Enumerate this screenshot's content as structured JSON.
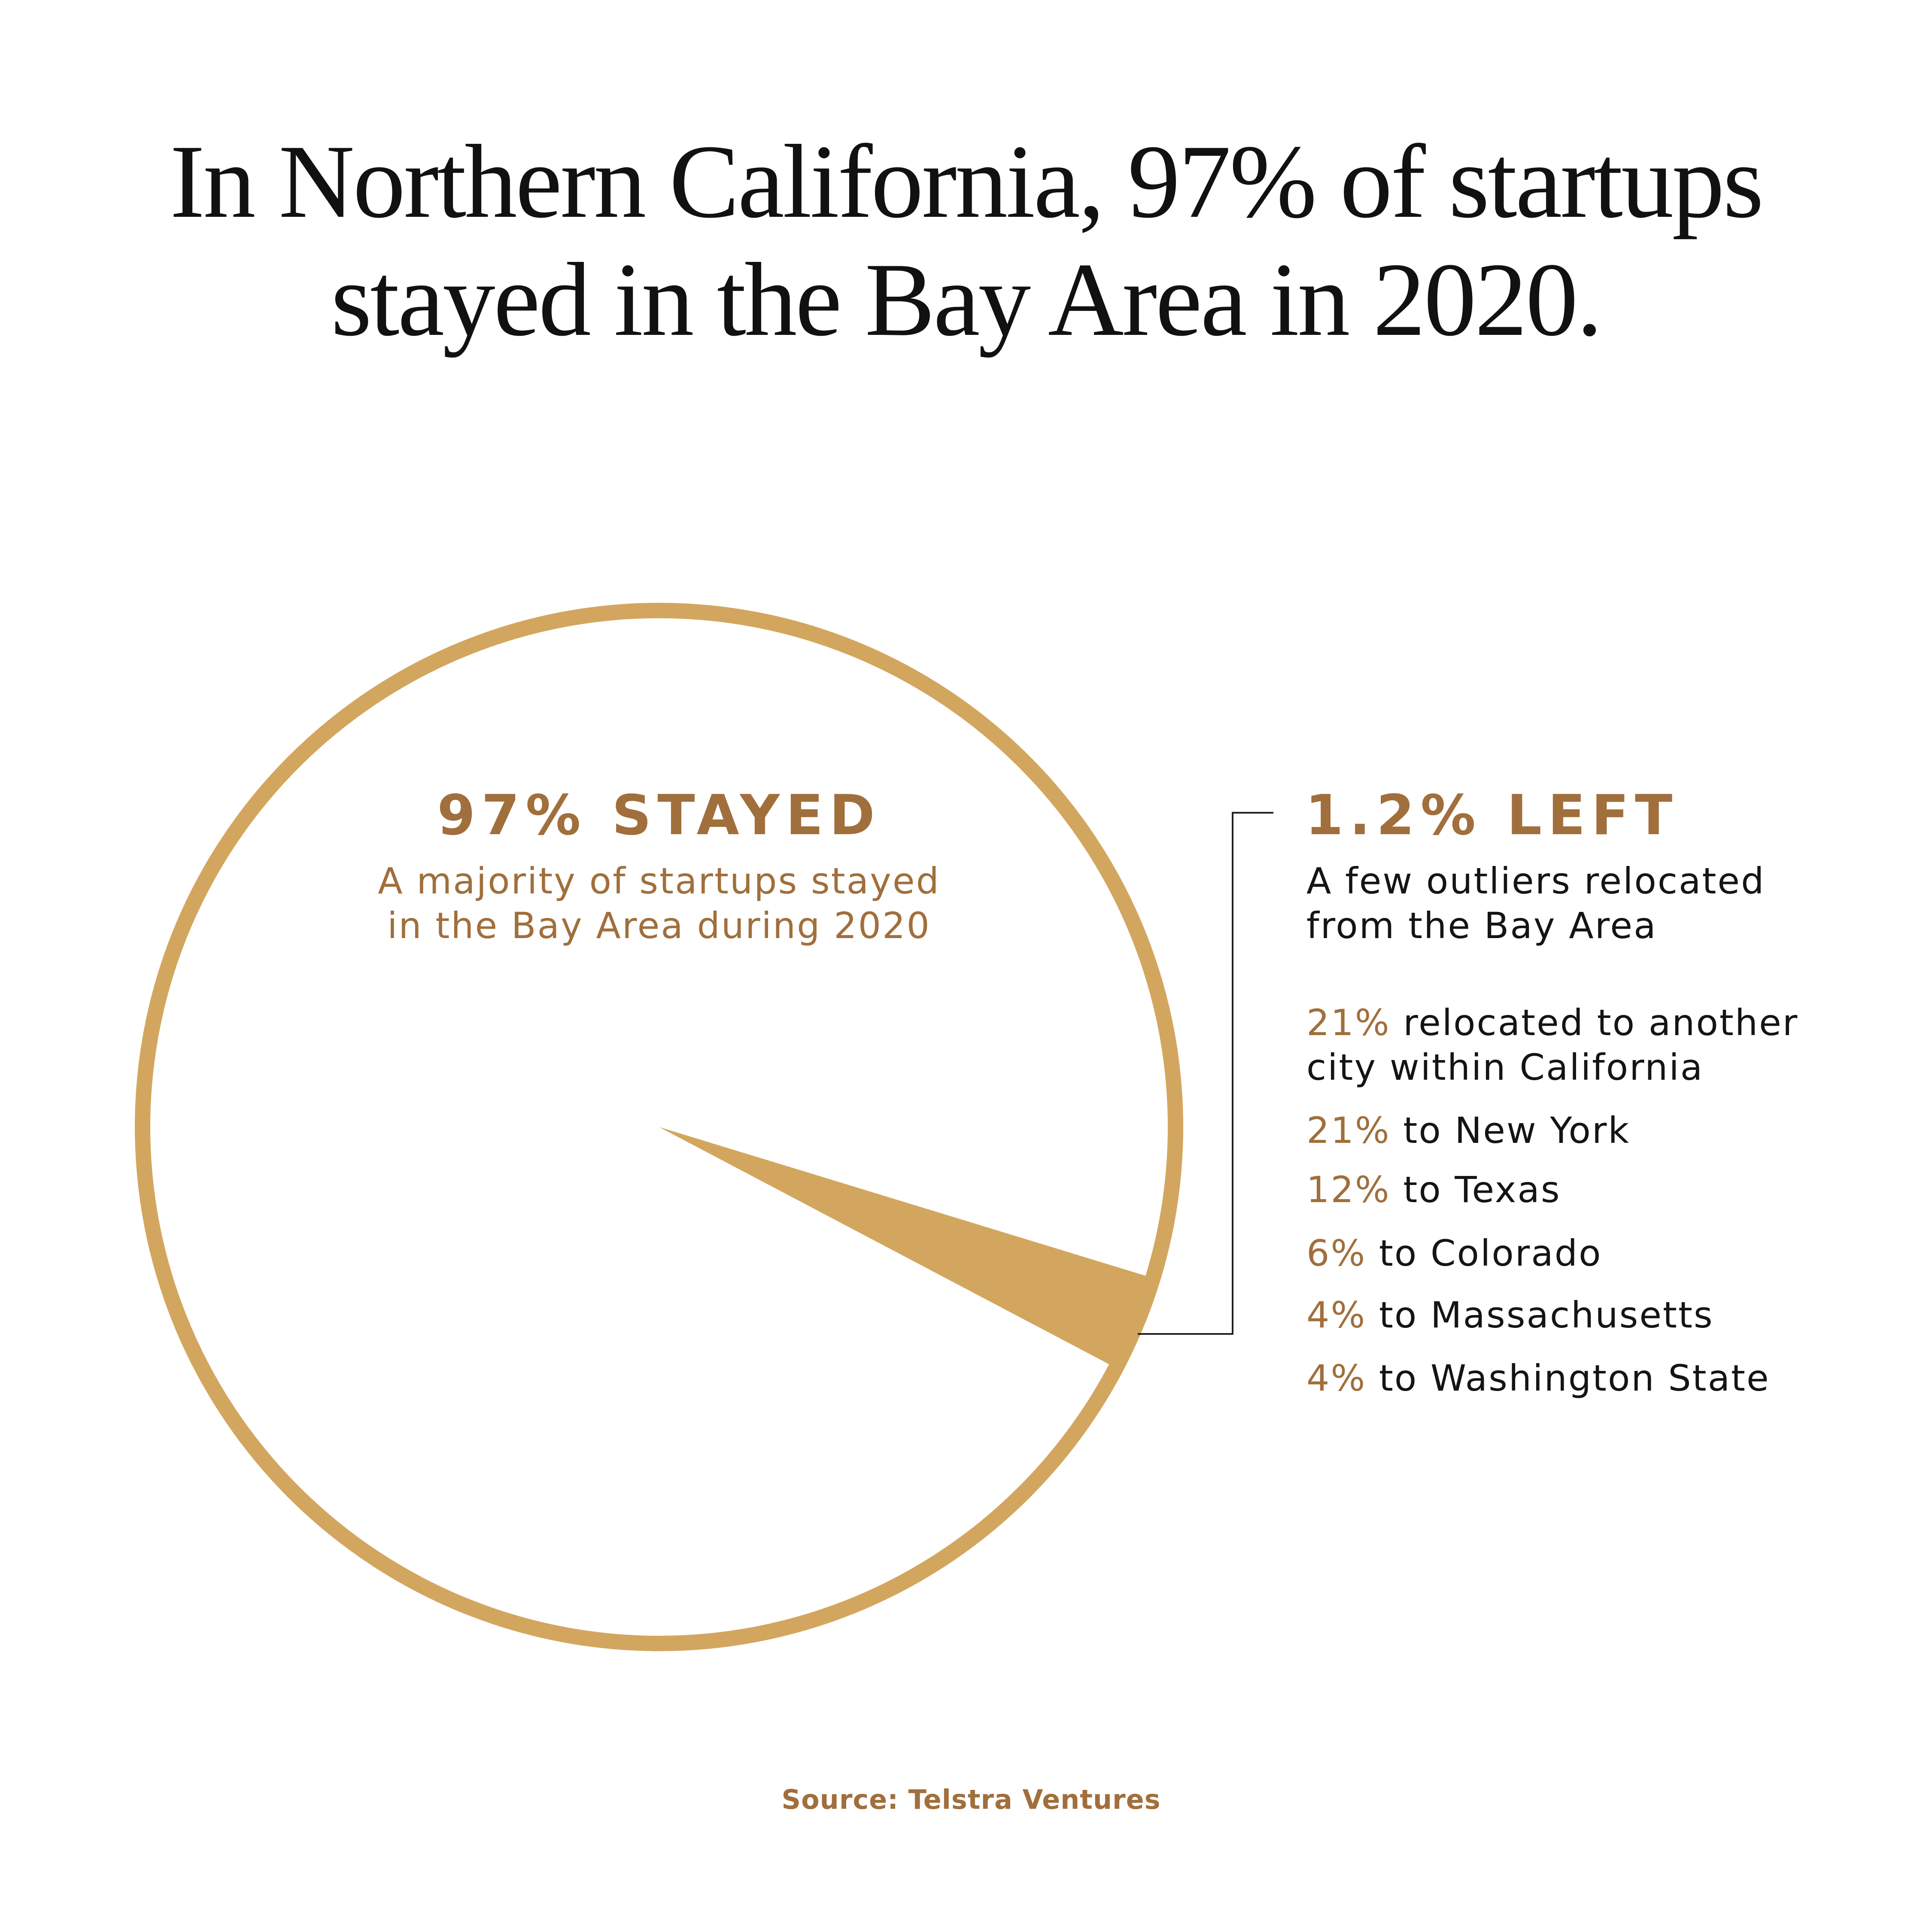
{
  "title": {
    "line1": "In Northern California, 97% of startups",
    "line2": "stayed in the Bay Area in 2020."
  },
  "chart_data": {
    "type": "pie",
    "slices": [
      {
        "label": "97% STAYED",
        "value": 97,
        "color": "#FFFFFF"
      },
      {
        "label": "1.2% LEFT",
        "value": 1.2,
        "color": "#D3A65F"
      }
    ],
    "ring_color": "#D3A65F"
  },
  "stayed": {
    "heading": "97% STAYED",
    "desc_line1": "A majority of startups stayed",
    "desc_line2": "in the Bay Area during 2020"
  },
  "left": {
    "heading": "1.2% LEFT",
    "desc_line1": "A few outliers relocated",
    "desc_line2": "from the Bay Area",
    "items": [
      {
        "pct": "21%",
        "text": "relocated to another",
        "text2": "city within California"
      },
      {
        "pct": "21%",
        "text": "to New York"
      },
      {
        "pct": "12%",
        "text": "to Texas"
      },
      {
        "pct": "6%",
        "text": "to Colorado"
      },
      {
        "pct": "4%",
        "text": "to Massachusetts"
      },
      {
        "pct": "4%",
        "text": "to Washington State"
      }
    ]
  },
  "source": "Source:  Telstra Ventures",
  "colors": {
    "accent": "#D3A65F",
    "text_brown": "#A06F3C",
    "text_dark": "#141414"
  }
}
